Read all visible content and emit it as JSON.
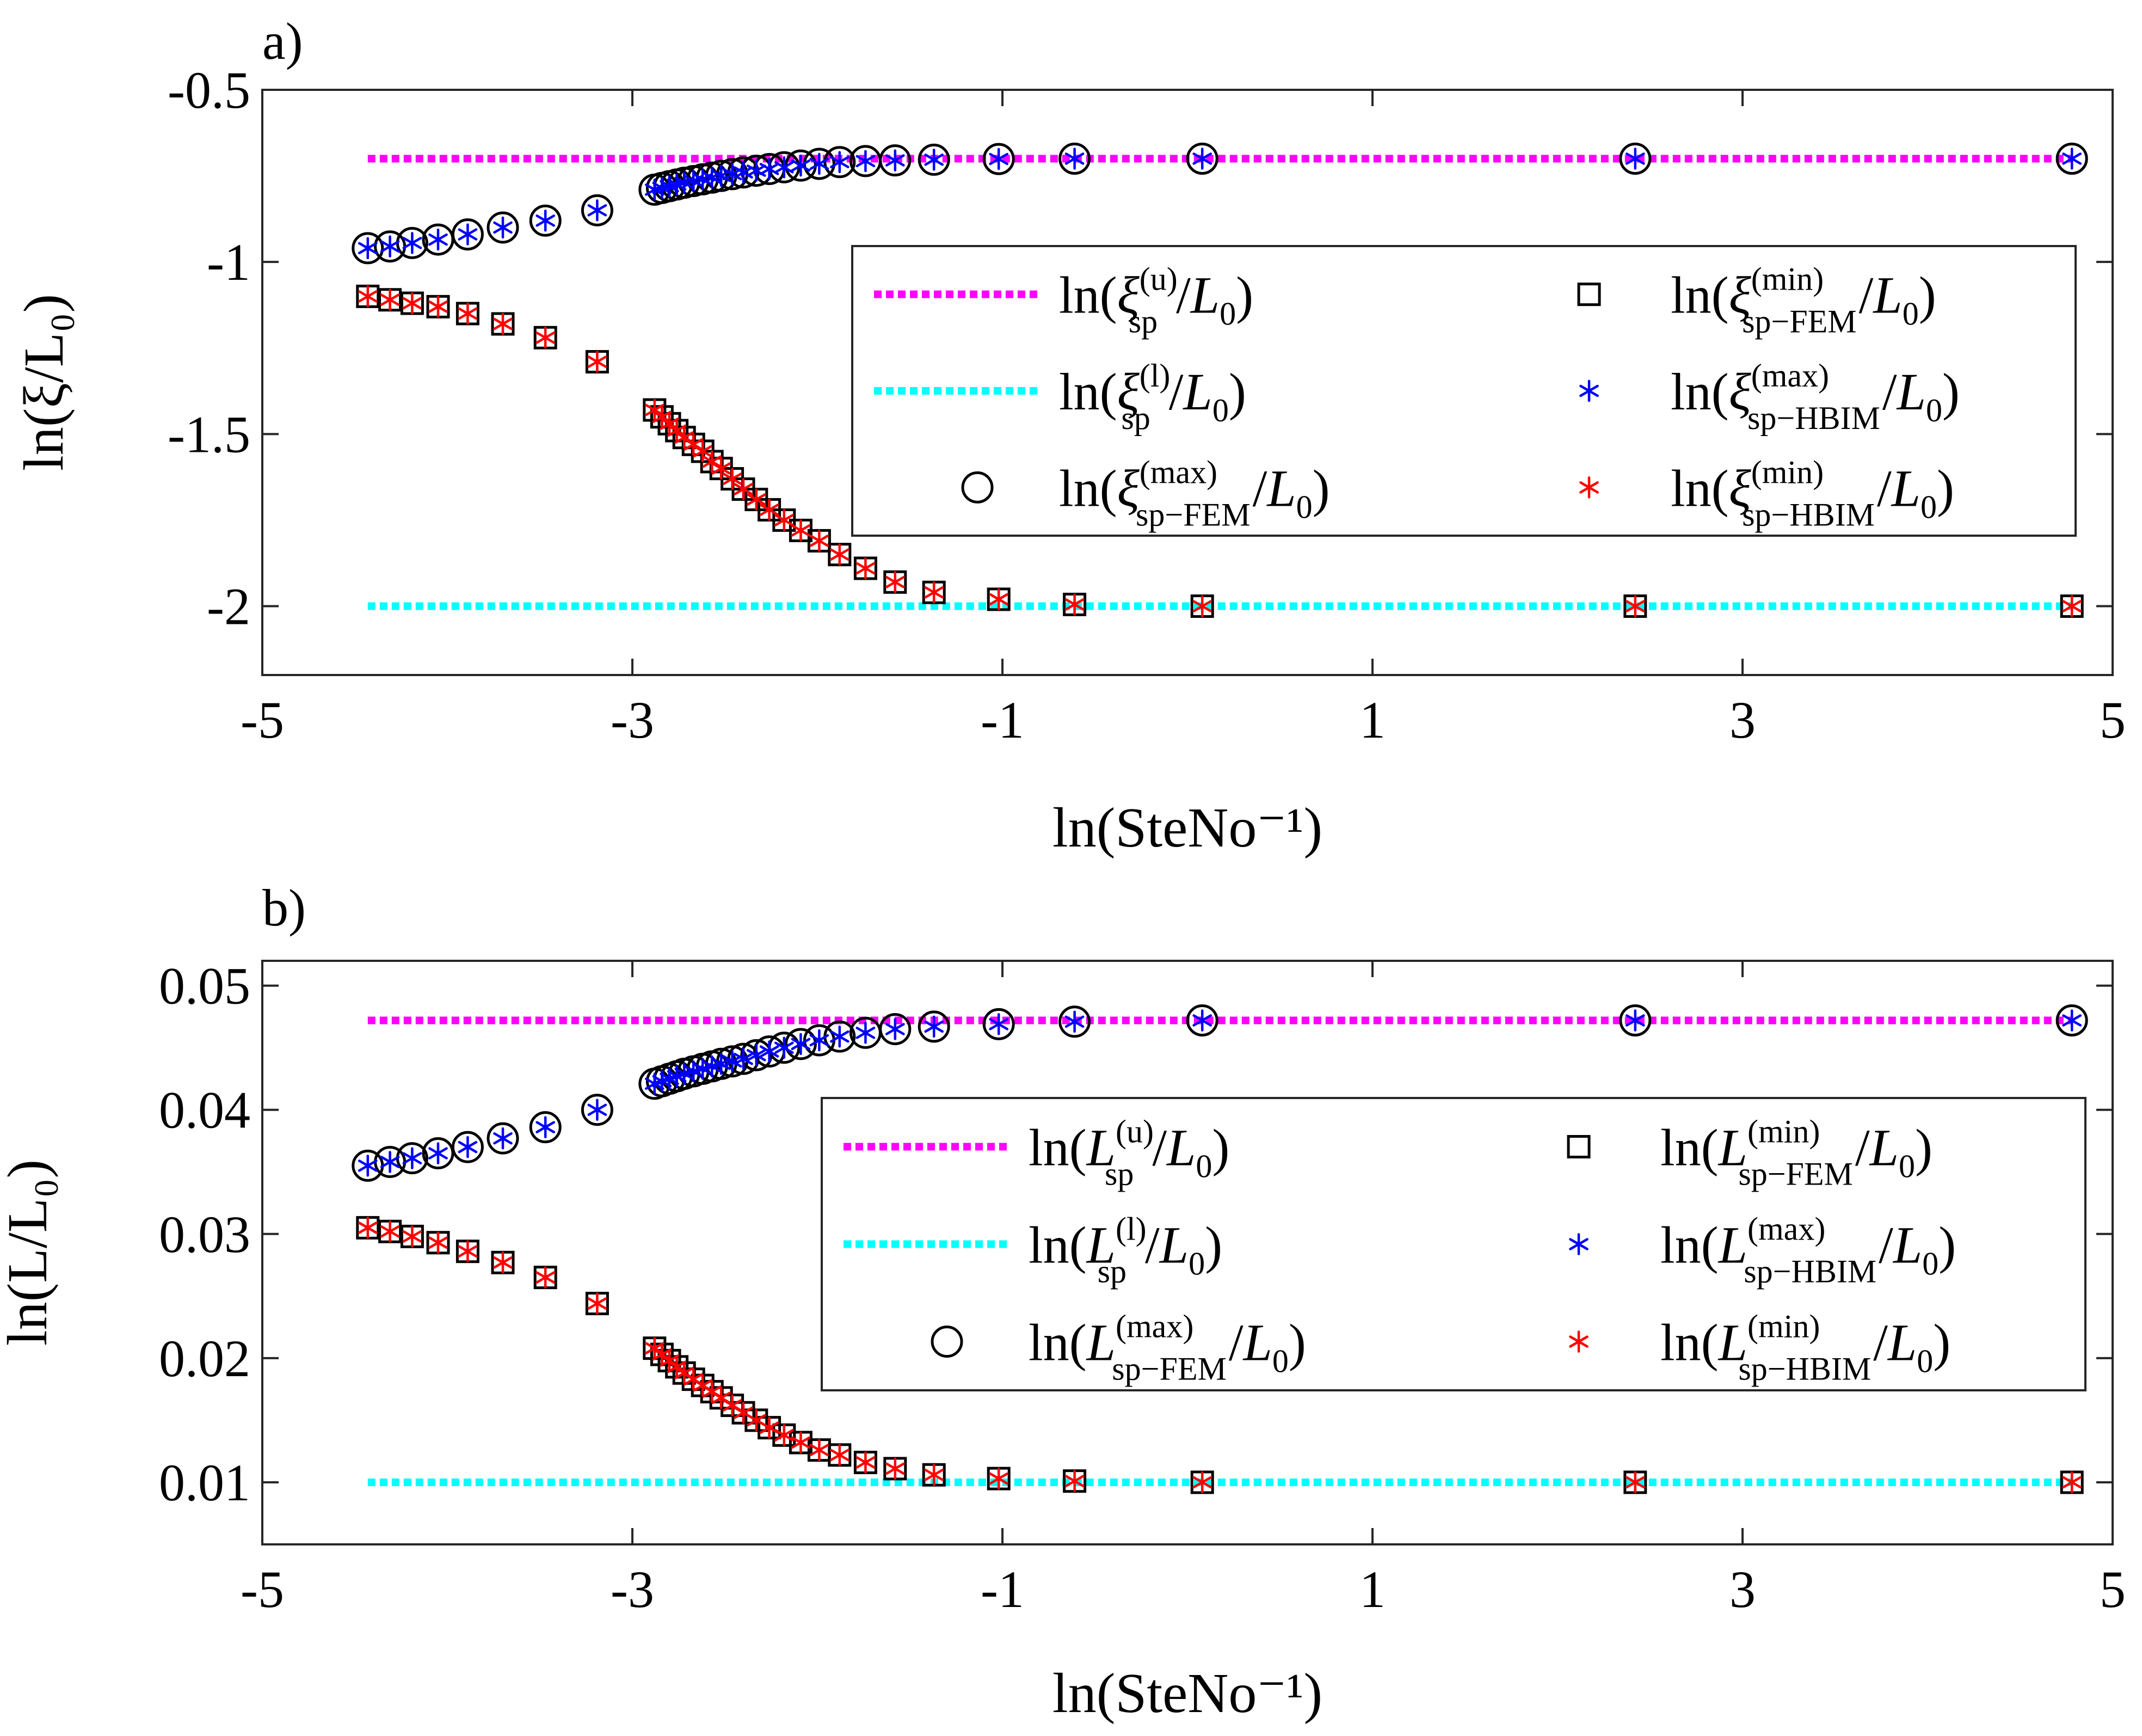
{
  "chart_data": [
    {
      "panel_label": "a)",
      "type": "scatter",
      "title": "",
      "xlabel": "ln(SteNo⁻¹)",
      "ylabel": "ln(ξ/L₀)",
      "xlim": [
        -5,
        5
      ],
      "ylim": [
        -2.2,
        -0.5
      ],
      "xticks": [
        -5,
        -3,
        -1,
        1,
        3,
        5
      ],
      "xtick_labels": [
        "-5",
        "-3",
        "-1",
        "1",
        "3",
        "5"
      ],
      "yticks": [
        -0.5,
        -1,
        -1.5,
        -2
      ],
      "ytick_labels": [
        "-0.5",
        "-1",
        "-1.5",
        "-2"
      ],
      "grid": false,
      "legend_position": "right",
      "x": [
        -4.43,
        -4.31,
        -4.19,
        -4.05,
        -3.89,
        -3.7,
        -3.47,
        -3.19,
        -2.88,
        -2.84,
        -2.8,
        -2.76,
        -2.72,
        -2.67,
        -2.62,
        -2.57,
        -2.52,
        -2.46,
        -2.4,
        -2.33,
        -2.26,
        -2.18,
        -2.09,
        -1.99,
        -1.88,
        -1.74,
        -1.58,
        -1.37,
        -1.02,
        -0.61,
        0.08,
        2.42,
        4.78
      ],
      "reference_lines": [
        {
          "name": "upper",
          "y": -0.7,
          "x_range": [
            -4.43,
            4.78
          ],
          "color": "#ff00ff",
          "style": "dotted"
        },
        {
          "name": "lower",
          "y": -2.0,
          "x_range": [
            -4.43,
            4.78
          ],
          "color": "#00ffff",
          "style": "dotted"
        }
      ],
      "series": [
        {
          "name": "max-FEM",
          "marker": "circle",
          "color": "#000000",
          "values": [
            -0.96,
            -0.955,
            -0.945,
            -0.935,
            -0.92,
            -0.9,
            -0.88,
            -0.85,
            -0.79,
            -0.785,
            -0.78,
            -0.775,
            -0.77,
            -0.765,
            -0.76,
            -0.755,
            -0.75,
            -0.745,
            -0.74,
            -0.735,
            -0.73,
            -0.725,
            -0.72,
            -0.715,
            -0.71,
            -0.707,
            -0.705,
            -0.703,
            -0.701,
            -0.7,
            -0.7,
            -0.7,
            -0.7
          ]
        },
        {
          "name": "max-HBIM",
          "marker": "asterisk",
          "color": "#0000ff",
          "values": [
            -0.96,
            -0.955,
            -0.945,
            -0.935,
            -0.92,
            -0.9,
            -0.88,
            -0.85,
            -0.79,
            -0.785,
            -0.78,
            -0.775,
            -0.77,
            -0.765,
            -0.76,
            -0.755,
            -0.75,
            -0.745,
            -0.74,
            -0.735,
            -0.73,
            -0.725,
            -0.72,
            -0.715,
            -0.71,
            -0.707,
            -0.705,
            -0.703,
            -0.701,
            -0.7,
            -0.7,
            -0.7,
            -0.7
          ]
        },
        {
          "name": "min-FEM",
          "marker": "square",
          "color": "#000000",
          "values": [
            -1.1,
            -1.11,
            -1.12,
            -1.13,
            -1.15,
            -1.18,
            -1.22,
            -1.29,
            -1.43,
            -1.45,
            -1.47,
            -1.49,
            -1.51,
            -1.53,
            -1.55,
            -1.58,
            -1.6,
            -1.63,
            -1.66,
            -1.69,
            -1.72,
            -1.75,
            -1.78,
            -1.81,
            -1.85,
            -1.89,
            -1.93,
            -1.96,
            -1.98,
            -1.995,
            -2.0,
            -2.0,
            -2.0
          ]
        },
        {
          "name": "min-HBIM",
          "marker": "asterisk",
          "color": "#ff0000",
          "values": [
            -1.1,
            -1.11,
            -1.12,
            -1.13,
            -1.15,
            -1.18,
            -1.22,
            -1.29,
            -1.43,
            -1.45,
            -1.47,
            -1.49,
            -1.51,
            -1.53,
            -1.55,
            -1.58,
            -1.6,
            -1.63,
            -1.66,
            -1.69,
            -1.72,
            -1.75,
            -1.78,
            -1.81,
            -1.85,
            -1.89,
            -1.93,
            -1.96,
            -1.98,
            -1.995,
            -2.0,
            -2.0,
            -2.0
          ]
        }
      ],
      "legend": [
        {
          "key": "ref-u",
          "base": "ξ",
          "sup": "(u)",
          "sub": "sp",
          "denom": "L",
          "denom_sub": "0"
        },
        {
          "key": "ref-l",
          "base": "ξ",
          "sup": "(l)",
          "sub": "sp",
          "denom": "L",
          "denom_sub": "0"
        },
        {
          "key": "max-FEM",
          "base": "ξ",
          "sup": "(max)",
          "sub": "sp−FEM",
          "denom": "L",
          "denom_sub": "0"
        },
        {
          "key": "min-FEM",
          "base": "ξ",
          "sup": "(min)",
          "sub": "sp−FEM",
          "denom": "L",
          "denom_sub": "0"
        },
        {
          "key": "max-HBIM",
          "base": "ξ",
          "sup": "(max)",
          "sub": "sp−HBIM",
          "denom": "L",
          "denom_sub": "0"
        },
        {
          "key": "min-HBIM",
          "base": "ξ",
          "sup": "(min)",
          "sub": "sp−HBIM",
          "denom": "L",
          "denom_sub": "0"
        }
      ]
    },
    {
      "panel_label": "b)",
      "type": "scatter",
      "title": "",
      "xlabel": "ln(SteNo⁻¹)",
      "ylabel": "ln(L/L₀)",
      "xlim": [
        -5,
        5
      ],
      "ylim": [
        0.005,
        0.052
      ],
      "xticks": [
        -5,
        -3,
        -1,
        1,
        3,
        5
      ],
      "xtick_labels": [
        "-5",
        "-3",
        "-1",
        "1",
        "3",
        "5"
      ],
      "yticks": [
        0.05,
        0.04,
        0.03,
        0.02,
        0.01
      ],
      "ytick_labels": [
        "0.05",
        "0.04",
        "0.03",
        "0.02",
        "0.01"
      ],
      "grid": false,
      "legend_position": "right",
      "x": [
        -4.43,
        -4.31,
        -4.19,
        -4.05,
        -3.89,
        -3.7,
        -3.47,
        -3.19,
        -2.88,
        -2.84,
        -2.8,
        -2.76,
        -2.72,
        -2.67,
        -2.62,
        -2.57,
        -2.52,
        -2.46,
        -2.4,
        -2.33,
        -2.26,
        -2.18,
        -2.09,
        -1.99,
        -1.88,
        -1.74,
        -1.58,
        -1.37,
        -1.02,
        -0.61,
        0.08,
        2.42,
        4.78
      ],
      "reference_lines": [
        {
          "name": "upper",
          "y": 0.0472,
          "x_range": [
            -4.43,
            4.78
          ],
          "color": "#ff00ff",
          "style": "dotted"
        },
        {
          "name": "lower",
          "y": 0.01,
          "x_range": [
            -4.43,
            4.78
          ],
          "color": "#00ffff",
          "style": "dotted"
        }
      ],
      "series": [
        {
          "name": "max-FEM",
          "marker": "circle",
          "color": "#000000",
          "values": [
            0.0355,
            0.0358,
            0.0361,
            0.0365,
            0.037,
            0.0377,
            0.0386,
            0.04,
            0.0421,
            0.0423,
            0.0425,
            0.0427,
            0.0429,
            0.0431,
            0.0433,
            0.0435,
            0.0437,
            0.0439,
            0.0441,
            0.0444,
            0.0447,
            0.045,
            0.0453,
            0.0456,
            0.0459,
            0.0462,
            0.0465,
            0.0467,
            0.0469,
            0.0471,
            0.0472,
            0.0472,
            0.0472
          ]
        },
        {
          "name": "max-HBIM",
          "marker": "asterisk",
          "color": "#0000ff",
          "values": [
            0.0355,
            0.0358,
            0.0361,
            0.0365,
            0.037,
            0.0377,
            0.0386,
            0.04,
            0.0421,
            0.0423,
            0.0425,
            0.0427,
            0.0429,
            0.0431,
            0.0433,
            0.0435,
            0.0437,
            0.0439,
            0.0441,
            0.0444,
            0.0447,
            0.045,
            0.0453,
            0.0456,
            0.0459,
            0.0462,
            0.0465,
            0.0467,
            0.0469,
            0.0471,
            0.0472,
            0.0472,
            0.0472
          ]
        },
        {
          "name": "min-FEM",
          "marker": "square",
          "color": "#000000",
          "values": [
            0.0305,
            0.0302,
            0.0298,
            0.0293,
            0.0286,
            0.0277,
            0.0265,
            0.0244,
            0.0208,
            0.0203,
            0.0198,
            0.0193,
            0.0188,
            0.0183,
            0.0178,
            0.0173,
            0.0168,
            0.0162,
            0.0156,
            0.015,
            0.0144,
            0.0138,
            0.0132,
            0.0126,
            0.0122,
            0.0116,
            0.0111,
            0.0106,
            0.0103,
            0.0101,
            0.01,
            0.01,
            0.01
          ]
        },
        {
          "name": "min-HBIM",
          "marker": "asterisk",
          "color": "#ff0000",
          "values": [
            0.0305,
            0.0302,
            0.0298,
            0.0293,
            0.0286,
            0.0277,
            0.0265,
            0.0244,
            0.0208,
            0.0203,
            0.0198,
            0.0193,
            0.0188,
            0.0183,
            0.0178,
            0.0173,
            0.0168,
            0.0162,
            0.0156,
            0.015,
            0.0144,
            0.0138,
            0.0132,
            0.0126,
            0.0122,
            0.0116,
            0.0111,
            0.0106,
            0.0103,
            0.0101,
            0.01,
            0.01,
            0.01
          ]
        }
      ],
      "legend": [
        {
          "key": "ref-u",
          "base": "L",
          "sup": "(u)",
          "sub": "sp",
          "denom": "L",
          "denom_sub": "0"
        },
        {
          "key": "ref-l",
          "base": "L",
          "sup": "(l)",
          "sub": "sp",
          "denom": "L",
          "denom_sub": "0"
        },
        {
          "key": "max-FEM",
          "base": "L",
          "sup": "(max)",
          "sub": "sp−FEM",
          "denom": "L",
          "denom_sub": "0"
        },
        {
          "key": "min-FEM",
          "base": "L",
          "sup": "(min)",
          "sub": "sp−FEM",
          "denom": "L",
          "denom_sub": "0"
        },
        {
          "key": "max-HBIM",
          "base": "L",
          "sup": "(max)",
          "sub": "sp−HBIM",
          "denom": "L",
          "denom_sub": "0"
        },
        {
          "key": "min-HBIM",
          "base": "L",
          "sup": "(min)",
          "sub": "sp−HBIM",
          "denom": "L",
          "denom_sub": "0"
        }
      ]
    }
  ]
}
